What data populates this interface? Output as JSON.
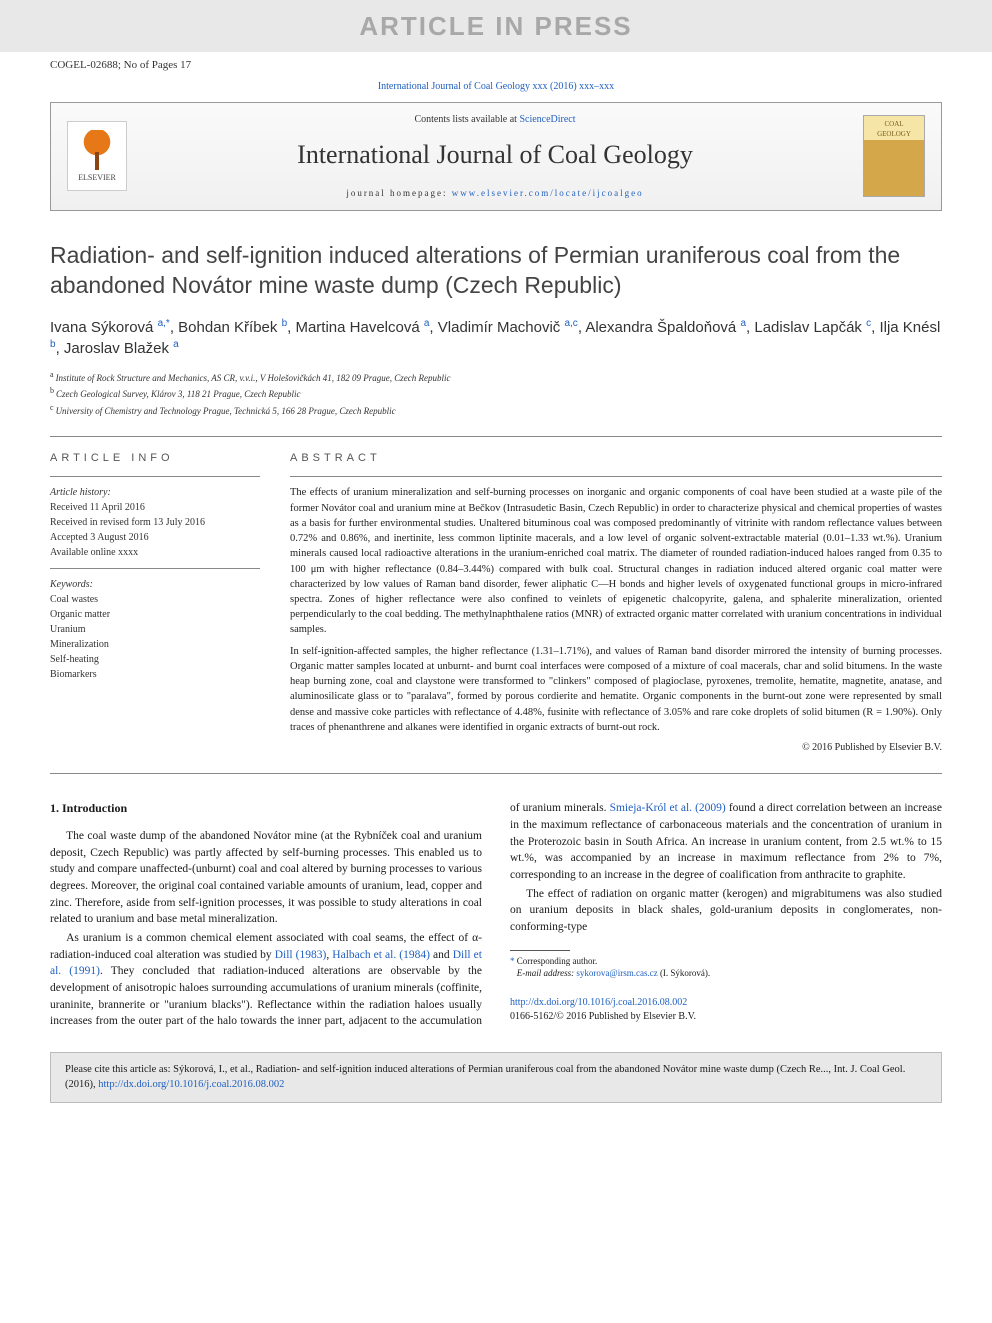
{
  "watermark": "ARTICLE IN PRESS",
  "article_id_line": "COGEL-02688; No of Pages 17",
  "journal_ref_line": "International Journal of Coal Geology xxx (2016) xxx–xxx",
  "header": {
    "contents_prefix": "Contents lists available at ",
    "contents_link": "ScienceDirect",
    "journal_title": "International Journal of Coal Geology",
    "homepage_prefix": "journal homepage: ",
    "homepage_url": "www.elsevier.com/locate/ijcoalgeo",
    "publisher_logo_label": "ELSEVIER",
    "cover_line1": "COAL",
    "cover_line2": "GEOLOGY"
  },
  "title": "Radiation- and self-ignition induced alterations of Permian uraniferous coal from the abandoned Novátor mine waste dump (Czech Republic)",
  "authors": [
    {
      "name": "Ivana Sýkorová",
      "aff": "a,",
      "corr": true
    },
    {
      "name": "Bohdan Kříbek",
      "aff": "b"
    },
    {
      "name": "Martina Havelcová",
      "aff": "a"
    },
    {
      "name": "Vladimír Machovič",
      "aff": "a,c"
    },
    {
      "name": "Alexandra Špaldoňová",
      "aff": "a"
    },
    {
      "name": "Ladislav Lapčák",
      "aff": "c"
    },
    {
      "name": "Ilja Knésl",
      "aff": "b"
    },
    {
      "name": "Jaroslav Blažek",
      "aff": "a"
    }
  ],
  "affiliations": [
    {
      "key": "a",
      "text": "Institute of Rock Structure and Mechanics, AS CR, v.v.i., V Holešovičkách 41, 182 09 Prague, Czech Republic"
    },
    {
      "key": "b",
      "text": "Czech Geological Survey, Klárov 3, 118 21 Prague, Czech Republic"
    },
    {
      "key": "c",
      "text": "University of Chemistry and Technology Prague, Technická 5, 166 28 Prague, Czech Republic"
    }
  ],
  "info_heading": "ARTICLE INFO",
  "abstract_heading": "ABSTRACT",
  "history": {
    "label": "Article history:",
    "received": "Received 11 April 2016",
    "revised": "Received in revised form 13 July 2016",
    "accepted": "Accepted 3 August 2016",
    "online": "Available online xxxx"
  },
  "keywords": {
    "label": "Keywords:",
    "items": [
      "Coal wastes",
      "Organic matter",
      "Uranium",
      "Mineralization",
      "Self-heating",
      "Biomarkers"
    ]
  },
  "abstract": {
    "p1": "The effects of uranium mineralization and self-burning processes on inorganic and organic components of coal have been studied at a waste pile of the former Novátor coal and uranium mine at Bečkov (Intrasudetic Basin, Czech Republic) in order to characterize physical and chemical properties of wastes as a basis for further environmental studies. Unaltered bituminous coal was composed predominantly of vitrinite with random reflectance values between 0.72% and 0.86%, and inertinite, less common liptinite macerals, and a low level of organic solvent-extractable material (0.01–1.33 wt.%). Uranium minerals caused local radioactive alterations in the uranium-enriched coal matrix. The diameter of rounded radiation-induced haloes ranged from 0.35 to 100 μm with higher reflectance (0.84–3.44%) compared with bulk coal. Structural changes in radiation induced altered organic coal matter were characterized by low values of Raman band disorder, fewer aliphatic C—H bonds and higher levels of oxygenated functional groups in micro-infrared spectra. Zones of higher reflectance were also confined to veinlets of epigenetic chalcopyrite, galena, and sphalerite mineralization, oriented perpendicularly to the coal bedding. The methylnaphthalene ratios (MNR) of extracted organic matter correlated with uranium concentrations in individual samples.",
    "p2": "In self-ignition-affected samples, the higher reflectance (1.31–1.71%), and values of Raman band disorder mirrored the intensity of burning processes. Organic matter samples located at unburnt- and burnt coal interfaces were composed of a mixture of coal macerals, char and solid bitumens. In the waste heap burning zone, coal and claystone were transformed to \"clinkers\" composed of plagioclase, pyroxenes, tremolite, hematite, magnetite, anatase, and aluminosilicate glass or to \"paralava\", formed by porous cordierite and hematite. Organic components in the burnt-out zone were represented by small dense and massive coke particles with reflectance of 4.48%, fusinite with reflectance of 3.05% and rare coke droplets of solid bitumen (R = 1.90%). Only traces of phenanthrene and alkanes were identified in organic extracts of burnt-out rock.",
    "copyright": "© 2016 Published by Elsevier B.V."
  },
  "intro": {
    "heading": "1. Introduction",
    "p1": "The coal waste dump of the abandoned Novátor mine (at the Rybníček coal and uranium deposit, Czech Republic) was partly affected by self-burning processes. This enabled us to study and compare unaffected-(unburnt) coal and coal altered by burning processes to various degrees. Moreover, the original coal contained variable amounts of uranium, lead, copper and zinc. Therefore, aside from self-ignition processes, it was possible to study alterations in coal related to uranium and base metal mineralization.",
    "p2_pre": "As uranium is a common chemical element associated with coal seams, the effect of α-radiation-induced coal alteration was studied by ",
    "p2_cite1": "Dill (1983)",
    "p2_mid1": ", ",
    "p2_cite2": "Halbach et al. (1984)",
    "p2_mid2": " and ",
    "p2_cite3": "Dill et al. (1991)",
    "p2_post1": ". They concluded that radiation-induced alterations are observable by the development of anisotropic haloes surrounding accumulations of uranium minerals (coffinite, uraninite, brannerite or \"uranium blacks\"). Reflectance within the radiation haloes usually increases from the outer part of the halo towards the inner part, adjacent to the accumulation of uranium minerals. ",
    "p2_cite4": "Smieja-Król et al. (2009)",
    "p2_post2": " found a direct correlation between an increase in the maximum reflectance of carbonaceous materials and the concentration of uranium in the Proterozoic basin in South Africa. An increase in uranium content, from 2.5 wt.% to 15 wt.%, was accompanied by an increase in maximum reflectance from 2% to 7%, corresponding to an increase in the degree of coalification from anthracite to graphite.",
    "p3": "The effect of radiation on organic matter (kerogen) and migrabitumens was also studied on uranium deposits in black shales, gold-uranium deposits in conglomerates, non-conforming-type"
  },
  "footnote": {
    "corr_label": "Corresponding author.",
    "email_label": "E-mail address:",
    "email": "sykorova@irsm.cas.cz",
    "email_name": "(I. Sýkorová)."
  },
  "doi": {
    "url": "http://dx.doi.org/10.1016/j.coal.2016.08.002",
    "issn_line": "0166-5162/© 2016 Published by Elsevier B.V."
  },
  "cite_box": {
    "prefix": "Please cite this article as: Sýkorová, I., et al., Radiation- and self-ignition induced alterations of Permian uraniferous coal from the abandoned Novátor mine waste dump (Czech Re..., Int. J. Coal Geol. (2016), ",
    "url": "http://dx.doi.org/10.1016/j.coal.2016.08.002"
  },
  "colors": {
    "link": "#2060c0",
    "watermark_bg": "#e8e8e8",
    "watermark_fg": "#a8a8a8",
    "rule": "#888888",
    "cite_bg": "#e8e8e8"
  }
}
